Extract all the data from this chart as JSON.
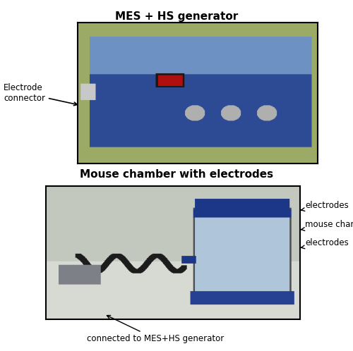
{
  "title1": "MES + HS generator",
  "title2": "Mouse chamber with electrodes",
  "label_electrode_connector": "Electrode\nconnector",
  "label_electrodes_top": "electrodes",
  "label_mouse_chamber": "mouse chamber",
  "label_electrodes_bottom": "electrodes",
  "label_connected": "connected to MES+HS generator",
  "bg_color": "#ffffff",
  "fig_width": 5.0,
  "fig_height": 4.98,
  "title_fontsize": 11,
  "annotation_fontsize": 8.5
}
